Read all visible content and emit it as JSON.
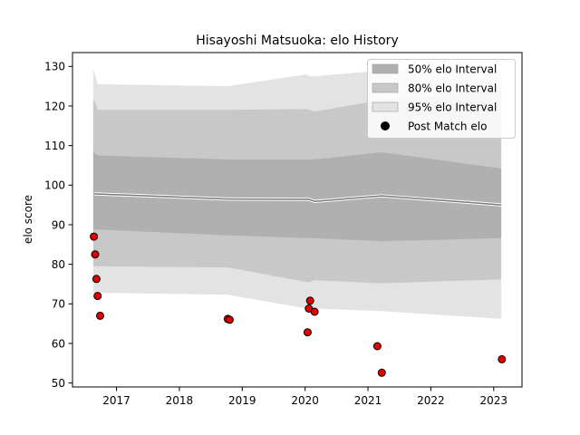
{
  "chart_data": {
    "type": "area",
    "title": "Hisayoshi Matsuoka: elo History",
    "xlabel": "",
    "ylabel": "elo score",
    "xlim": [
      2016.3,
      2023.45
    ],
    "ylim": [
      49,
      133.5
    ],
    "xticks": [
      2017,
      2018,
      2019,
      2020,
      2021,
      2022,
      2023
    ],
    "yticks": [
      50,
      60,
      70,
      80,
      90,
      100,
      110,
      120,
      130
    ],
    "grid": false,
    "legend_placement": "top-right",
    "legend": [
      {
        "label": "50% elo Interval",
        "kind": "patch",
        "color": "#b0b0b0"
      },
      {
        "label": "80% elo Interval",
        "kind": "patch",
        "color": "#c8c8c8"
      },
      {
        "label": "95% elo Interval",
        "kind": "patch",
        "color": "#e3e3e3"
      },
      {
        "label": "Post Match elo",
        "kind": "marker",
        "color": "#000000"
      }
    ],
    "band_x": [
      2016.63,
      2016.66,
      2016.7,
      2018.78,
      2020.03,
      2020.07,
      2020.15,
      2021.22,
      2023.12
    ],
    "bands": [
      {
        "name": "95% elo Interval",
        "color": "#e3e3e3",
        "upper": [
          129,
          128,
          125.5,
          125,
          128,
          127.5,
          127.5,
          129,
          129
        ],
        "lower": [
          72.8,
          72.8,
          72.8,
          72.3,
          68.8,
          68.8,
          68.8,
          68.2,
          66.2
        ]
      },
      {
        "name": "80% elo Interval",
        "color": "#c8c8c8",
        "upper": [
          121.5,
          121,
          119,
          119,
          119.2,
          119,
          118.6,
          121.5,
          124
        ],
        "lower": [
          79.5,
          79.5,
          79.5,
          79.2,
          75.5,
          75.5,
          76,
          75.2,
          76.2
        ]
      },
      {
        "name": "50% elo Interval",
        "color": "#b0b0b0",
        "upper": [
          108.5,
          108,
          107.5,
          106.5,
          106.5,
          106.5,
          106.5,
          108.3,
          104.2
        ],
        "lower": [
          88.8,
          88.8,
          88.8,
          87.3,
          86.6,
          86.6,
          86.6,
          85.8,
          86.6
        ]
      }
    ],
    "mean_line": {
      "color": "#7a7a7a",
      "x": [
        2016.64,
        2018.78,
        2020.07,
        2020.15,
        2021.22,
        2023.12
      ],
      "y": [
        97.8,
        96.5,
        96.4,
        95.9,
        97.3,
        95
      ]
    },
    "scatter": {
      "name": "Post Match elo",
      "color": "#e00000",
      "edge": "#000000",
      "x": [
        2016.64,
        2016.66,
        2016.68,
        2016.7,
        2016.74,
        2018.77,
        2018.8,
        2020.04,
        2020.06,
        2020.08,
        2020.15,
        2021.15,
        2021.22,
        2023.13
      ],
      "y": [
        87,
        82.5,
        76.3,
        72,
        67,
        66.2,
        66,
        62.8,
        68.8,
        70.8,
        68,
        59.3,
        52.6,
        56
      ]
    }
  }
}
